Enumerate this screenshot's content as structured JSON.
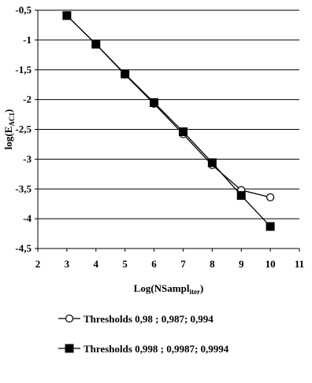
{
  "chart_data": {
    "type": "line",
    "xlabel": "Log(NSampl",
    "xlabel_sub": "iter",
    "xlabel_close": ")",
    "ylabel": "log(E",
    "ylabel_sub": "AC1",
    "ylabel_close": ")",
    "xlim": [
      2,
      11
    ],
    "ylim": [
      -4.5,
      -0.5
    ],
    "x_ticks": [
      2,
      3,
      4,
      5,
      6,
      7,
      8,
      9,
      10,
      11
    ],
    "x_tick_labels": [
      "2",
      "3",
      "4",
      "5",
      "6",
      "7",
      "8",
      "9",
      "10",
      "11"
    ],
    "y_ticks": [
      -0.5,
      -1,
      -1.5,
      -2,
      -2.5,
      -3,
      -3.5,
      -4,
      -4.5
    ],
    "y_tick_labels": [
      "-0,5",
      "-1",
      "-1,5",
      "-2",
      "-2,5",
      "-3",
      "-3,5",
      "-4",
      "-4,5"
    ],
    "grid": "horizontal",
    "legend_position": "bottom",
    "series": [
      {
        "name": "Thresholds 0,98 ; 0,987; 0,994",
        "marker": "circle-open",
        "color": "#000000",
        "x": [
          3,
          4,
          5,
          6,
          7,
          8,
          9,
          10
        ],
        "y": [
          -0.59,
          -1.07,
          -1.58,
          -2.07,
          -2.58,
          -3.1,
          -3.52,
          -3.64
        ]
      },
      {
        "name": "Thresholds 0,998 ; 0,9987; 0,9994",
        "marker": "square-filled",
        "color": "#000000",
        "x": [
          3,
          4,
          5,
          6,
          7,
          8,
          9,
          10
        ],
        "y": [
          -0.59,
          -1.07,
          -1.57,
          -2.05,
          -2.54,
          -3.06,
          -3.61,
          -4.13
        ]
      }
    ]
  }
}
